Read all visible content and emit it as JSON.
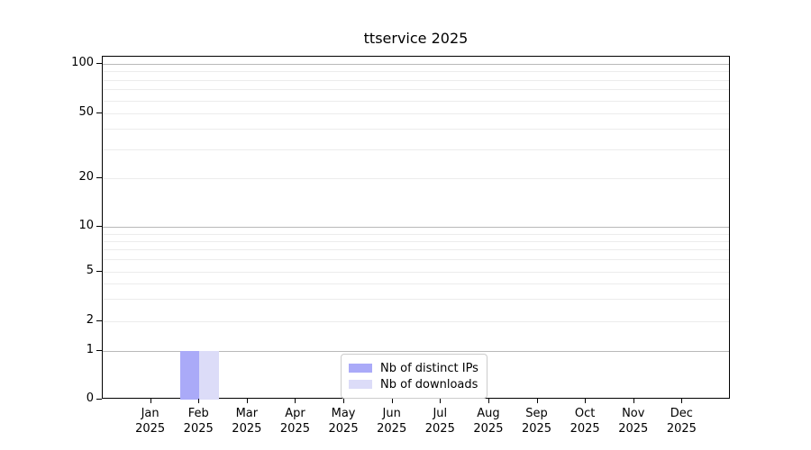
{
  "chart_data": {
    "type": "bar",
    "title": "ttservice 2025",
    "categories": [
      "Jan 2025",
      "Feb 2025",
      "Mar 2025",
      "Apr 2025",
      "May 2025",
      "Jun 2025",
      "Jul 2025",
      "Aug 2025",
      "Sep 2025",
      "Oct 2025",
      "Nov 2025",
      "Dec 2025"
    ],
    "series": [
      {
        "name": "Nb of distinct IPs",
        "color": "#aaaaf8",
        "values": [
          0,
          1,
          0,
          0,
          0,
          0,
          0,
          0,
          0,
          0,
          0,
          0
        ]
      },
      {
        "name": "Nb of downloads",
        "color": "#dcdcf8",
        "values": [
          0,
          1,
          0,
          0,
          0,
          0,
          0,
          0,
          0,
          0,
          0,
          0
        ]
      }
    ],
    "xlabel": "",
    "ylabel": "",
    "yscale": "symlog",
    "ylim": [
      0,
      110
    ],
    "ytick_labels": [
      "0",
      "1",
      "2",
      "5",
      "10",
      "20",
      "50",
      "100"
    ],
    "ytick_values": [
      0,
      1,
      2,
      5,
      10,
      20,
      50,
      100
    ],
    "grid": "horizontal, log minor gridlines on",
    "legend_position": "lower center inside axes",
    "colors": {
      "major_grid": "#b9b9b9",
      "minor_grid": "#ececec",
      "axis": "#000000",
      "legend_border": "#cccccc",
      "background": "#ffffff"
    }
  }
}
